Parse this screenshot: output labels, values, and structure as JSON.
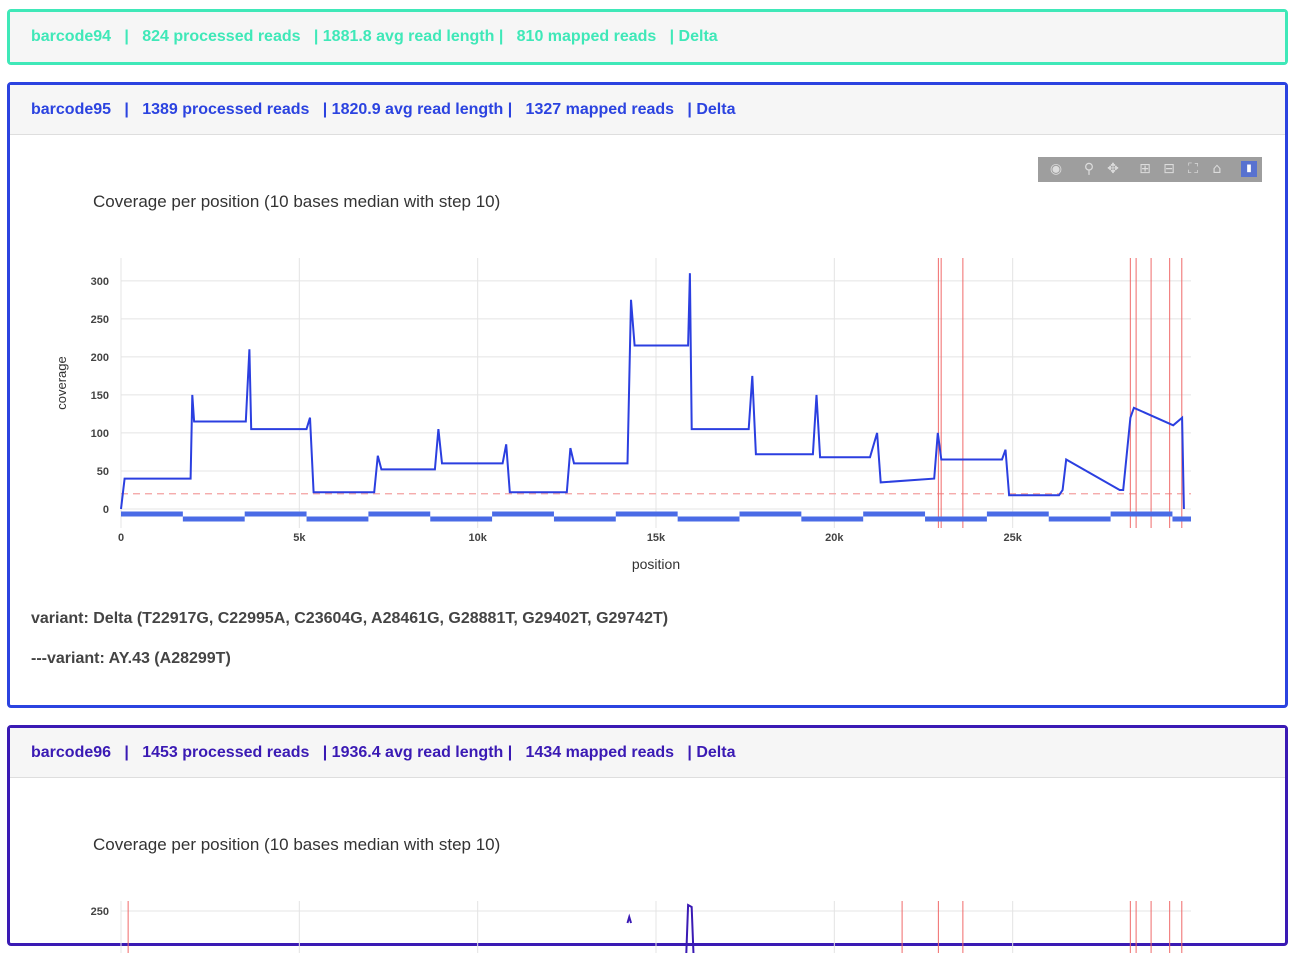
{
  "cards": [
    {
      "barcode": "barcode94",
      "header_text": "barcode94   |   824 processed reads   | 1881.8 avg read length |   810 mapped reads   | Delta",
      "color": "#3fe8b8"
    },
    {
      "barcode": "barcode95",
      "header_text": "barcode95   |   1389 processed reads   | 1820.9 avg read length |   1327 mapped reads   | Delta",
      "color": "#2b43e0",
      "plot_title": "Coverage per position (10 bases median with step 10)",
      "variants": [
        "variant: Delta (T22917G, C22995A, C23604G, A28461G, G28881T, G29402T, G29742T)",
        "---variant: AY.43 (A28299T)"
      ]
    },
    {
      "barcode": "barcode96",
      "header_text": "barcode96   |   1453 processed reads   | 1936.4 avg read length |   1434 mapped reads   | Delta",
      "color": "#3a1ab4",
      "plot_title": "Coverage per position (10 bases median with step 10)"
    }
  ],
  "modebar_icons": [
    "camera-icon",
    "zoom-icon",
    "pan-icon",
    "zoom-in-icon",
    "zoom-out-icon",
    "autoscale-icon",
    "reset-axes-icon",
    "plotly-logo-icon"
  ],
  "chart_data": [
    {
      "type": "line",
      "title": "Coverage per position (10 bases median with step 10)",
      "xlabel": "position",
      "ylabel": "coverage",
      "xlim": [
        0,
        30000
      ],
      "ylim": [
        -25,
        330
      ],
      "x_ticks": [
        "0",
        "5k",
        "10k",
        "15k",
        "20k",
        "25k"
      ],
      "x_tick_values": [
        0,
        5000,
        10000,
        15000,
        20000,
        25000
      ],
      "y_ticks": [
        "0",
        "50",
        "100",
        "150",
        "200",
        "250",
        "300"
      ],
      "y_tick_values": [
        0,
        50,
        100,
        150,
        200,
        250,
        300
      ],
      "threshold_line": 20,
      "variant_positions": [
        22917,
        22995,
        23604,
        28461,
        28881,
        29402,
        29742,
        28299
      ],
      "series": [
        {
          "x": [
            0,
            100,
            1950,
            2000,
            2050,
            2150,
            3500,
            3600,
            3650,
            3750,
            5200,
            5300,
            5400,
            7100,
            7200,
            7300,
            8800,
            8900,
            9000,
            10700,
            10800,
            10900,
            12500,
            12600,
            12700,
            14200,
            14300,
            14400,
            15900,
            15950,
            16000,
            16100,
            17600,
            17700,
            17800,
            19400,
            19500,
            19600,
            21000,
            21200,
            21300,
            22800,
            22900,
            23000,
            24700,
            24800,
            24900,
            26300,
            26400,
            26500,
            28000,
            28100,
            28300,
            28400,
            29500,
            29750,
            29800
          ],
          "values": [
            0,
            40,
            40,
            150,
            115,
            115,
            115,
            210,
            105,
            105,
            105,
            120,
            22,
            22,
            70,
            52,
            52,
            105,
            60,
            60,
            85,
            22,
            22,
            80,
            60,
            60,
            275,
            215,
            215,
            310,
            105,
            105,
            105,
            175,
            72,
            72,
            150,
            68,
            68,
            100,
            35,
            40,
            100,
            65,
            65,
            78,
            18,
            18,
            25,
            65,
            25,
            25,
            120,
            133,
            110,
            120,
            0
          ]
        }
      ]
    },
    {
      "type": "line",
      "title": "Coverage per position (10 bases median with step 10)",
      "y_ticks": [
        "250"
      ],
      "y_tick_values": [
        250
      ]
    }
  ]
}
